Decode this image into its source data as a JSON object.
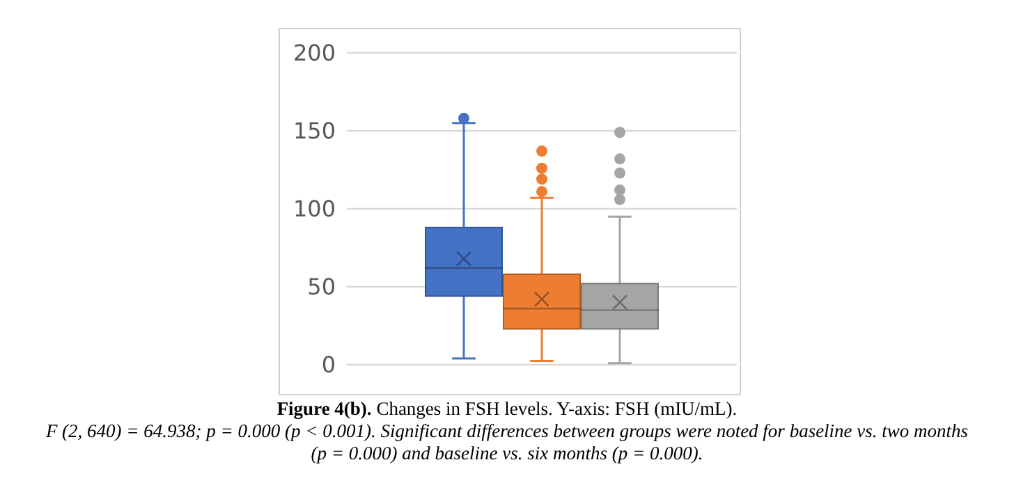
{
  "chart_data": {
    "type": "box",
    "categories": [
      null
    ],
    "series": [
      {
        "color": "#4472c4",
        "boxes": [
          {
            "low": 4,
            "q1": 44,
            "median": 62,
            "q3": 88,
            "high": 155,
            "mean": 68,
            "outliers": [
              158
            ]
          }
        ]
      },
      {
        "color": "#ed7d31",
        "boxes": [
          {
            "low": 2.5,
            "q1": 23,
            "median": 36,
            "q3": 58,
            "high": 107,
            "mean": 42,
            "outliers": [
              137,
              126,
              119,
              111
            ]
          }
        ]
      },
      {
        "color": "#a5a5a5",
        "boxes": [
          {
            "low": 1,
            "q1": 23,
            "median": 35,
            "q3": 52,
            "high": 95,
            "mean": 40,
            "outliers": [
              149,
              132,
              123,
              112,
              106
            ]
          }
        ]
      }
    ],
    "ylim": [
      0,
      200
    ],
    "yticks": [
      0,
      50,
      100,
      150,
      200
    ],
    "grid": "y",
    "legend": false,
    "annotations": [
      "Figure 4(b).",
      "Changes in FSH levels. Y-axis: FSH (mIU/mL).",
      "F (2, 640) = 64.938; p = 0.000 (p < 0.001). Significant differences between groups were noted for baseline vs. two months (p = 0.000) and baseline vs. six months (p = 0.000)."
    ]
  }
}
